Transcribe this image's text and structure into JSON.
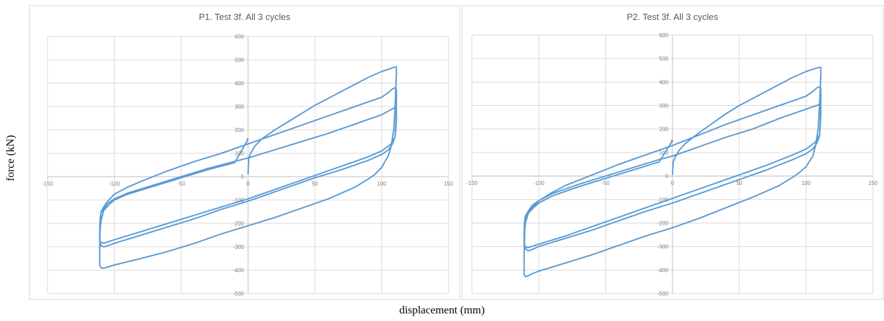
{
  "y_axis_label": "force (kN)",
  "x_axis_label": "displacement (mm)",
  "chart_data": [
    {
      "type": "line",
      "title": "P1. Test 3f. All 3 cycles",
      "xlim": [
        -150,
        150
      ],
      "ylim": [
        -500,
        600
      ],
      "x_ticks": [
        -150,
        -100,
        -50,
        0,
        50,
        100,
        150
      ],
      "y_ticks": [
        -500,
        -400,
        -300,
        -200,
        -100,
        0,
        100,
        200,
        300,
        400,
        500,
        600
      ],
      "grid": true,
      "color": "#5b9bd5",
      "series": [
        {
          "points": [
            [
              0,
              10
            ],
            [
              0.5,
              80
            ],
            [
              2,
              100
            ],
            [
              5,
              130
            ],
            [
              10,
              160
            ],
            [
              20,
              200
            ],
            [
              30,
              235
            ],
            [
              40,
              270
            ],
            [
              50,
              305
            ],
            [
              60,
              335
            ],
            [
              70,
              365
            ],
            [
              80,
              395
            ],
            [
              90,
              425
            ],
            [
              100,
              450
            ],
            [
              108,
              465
            ],
            [
              110,
              470
            ],
            [
              111,
              469
            ],
            [
              111,
              440
            ],
            [
              110.5,
              380
            ],
            [
              110,
              300
            ],
            [
              109,
              200
            ],
            [
              107,
              130
            ],
            [
              105,
              90
            ],
            [
              100,
              40
            ],
            [
              95,
              10
            ],
            [
              90,
              -10
            ],
            [
              80,
              -45
            ],
            [
              60,
              -95
            ],
            [
              40,
              -135
            ],
            [
              20,
              -175
            ],
            [
              0,
              -210
            ],
            [
              -20,
              -245
            ],
            [
              -40,
              -285
            ],
            [
              -60,
              -320
            ],
            [
              -80,
              -350
            ],
            [
              -100,
              -378
            ],
            [
              -106,
              -388
            ],
            [
              -108,
              -392
            ],
            [
              -110,
              -390
            ],
            [
              -111,
              -380
            ],
            [
              -111,
              -300
            ],
            [
              -110.5,
              -200
            ],
            [
              -110,
              -150
            ],
            [
              -108,
              -130
            ],
            [
              -105,
              -105
            ],
            [
              -100,
              -75
            ],
            [
              -90,
              -45
            ],
            [
              -80,
              -20
            ],
            [
              -60,
              25
            ],
            [
              -40,
              65
            ],
            [
              -20,
              100
            ],
            [
              0,
              140
            ],
            [
              20,
              180
            ],
            [
              40,
              220
            ],
            [
              60,
              260
            ],
            [
              80,
              300
            ],
            [
              100,
              340
            ],
            [
              105,
              360
            ],
            [
              108,
              375
            ],
            [
              110,
              380
            ],
            [
              111,
              375
            ],
            [
              111,
              300
            ],
            [
              110.5,
              220
            ],
            [
              110,
              170
            ],
            [
              108,
              140
            ],
            [
              105,
              115
            ],
            [
              100,
              95
            ],
            [
              90,
              70
            ],
            [
              70,
              30
            ],
            [
              50,
              -5
            ],
            [
              30,
              -45
            ],
            [
              10,
              -85
            ],
            [
              0,
              -105
            ],
            [
              -20,
              -140
            ],
            [
              -40,
              -180
            ],
            [
              -60,
              -215
            ],
            [
              -80,
              -250
            ],
            [
              -100,
              -285
            ],
            [
              -106,
              -298
            ],
            [
              -108,
              -300
            ],
            [
              -110,
              -295
            ],
            [
              -111,
              -270
            ],
            [
              -111,
              -220
            ],
            [
              -110.5,
              -170
            ],
            [
              -110,
              -155
            ],
            [
              -108,
              -140
            ],
            [
              -105,
              -115
            ],
            [
              -100,
              -95
            ],
            [
              -90,
              -70
            ],
            [
              -70,
              -35
            ],
            [
              -50,
              0
            ],
            [
              -30,
              35
            ],
            [
              -10,
              65
            ],
            [
              0,
              80
            ],
            [
              20,
              115
            ],
            [
              40,
              150
            ],
            [
              60,
              185
            ],
            [
              80,
              225
            ],
            [
              100,
              265
            ],
            [
              108,
              290
            ],
            [
              110,
              295
            ],
            [
              111,
              290
            ],
            [
              111,
              250
            ],
            [
              110.5,
              200
            ],
            [
              110,
              170
            ],
            [
              107,
              140
            ],
            [
              100,
              110
            ],
            [
              90,
              85
            ],
            [
              70,
              45
            ],
            [
              50,
              5
            ],
            [
              30,
              -35
            ],
            [
              10,
              -75
            ],
            [
              0,
              -95
            ],
            [
              -20,
              -130
            ],
            [
              -40,
              -165
            ],
            [
              -60,
              -200
            ],
            [
              -80,
              -235
            ],
            [
              -100,
              -270
            ],
            [
              -108,
              -285
            ],
            [
              -111,
              -278
            ],
            [
              -111,
              -240
            ],
            [
              -110,
              -190
            ],
            [
              -108,
              -145
            ],
            [
              -104,
              -120
            ],
            [
              -100,
              -100
            ],
            [
              -90,
              -75
            ],
            [
              -70,
              -40
            ],
            [
              -50,
              -5
            ],
            [
              -30,
              30
            ],
            [
              -10,
              60
            ],
            [
              0,
              160
            ],
            [
              -1,
              162
            ]
          ]
        }
      ]
    },
    {
      "type": "line",
      "title": "P2. Test 3f. All 3 cycles",
      "xlim": [
        -150,
        150
      ],
      "ylim": [
        -500,
        600
      ],
      "x_ticks": [
        -150,
        -100,
        -50,
        0,
        50,
        100,
        150
      ],
      "y_ticks": [
        -500,
        -400,
        -300,
        -200,
        -100,
        0,
        100,
        200,
        300,
        400,
        500,
        600
      ],
      "grid": true,
      "color": "#5b9bd5",
      "series": [
        {
          "points": [
            [
              0,
              5
            ],
            [
              0.5,
              60
            ],
            [
              2,
              80
            ],
            [
              5,
              110
            ],
            [
              10,
              140
            ],
            [
              20,
              185
            ],
            [
              30,
              225
            ],
            [
              40,
              265
            ],
            [
              50,
              300
            ],
            [
              60,
              330
            ],
            [
              70,
              360
            ],
            [
              80,
              390
            ],
            [
              90,
              420
            ],
            [
              100,
              445
            ],
            [
              108,
              460
            ],
            [
              110,
              463
            ],
            [
              111,
              462
            ],
            [
              111,
              430
            ],
            [
              110.5,
              370
            ],
            [
              110,
              300
            ],
            [
              109,
              200
            ],
            [
              107,
              130
            ],
            [
              105,
              85
            ],
            [
              100,
              40
            ],
            [
              95,
              15
            ],
            [
              90,
              -5
            ],
            [
              80,
              -40
            ],
            [
              60,
              -90
            ],
            [
              40,
              -135
            ],
            [
              20,
              -180
            ],
            [
              0,
              -220
            ],
            [
              -20,
              -255
            ],
            [
              -40,
              -295
            ],
            [
              -60,
              -335
            ],
            [
              -80,
              -370
            ],
            [
              -100,
              -405
            ],
            [
              -106,
              -418
            ],
            [
              -108,
              -425
            ],
            [
              -110,
              -428
            ],
            [
              -111,
              -420
            ],
            [
              -111,
              -330
            ],
            [
              -110.5,
              -230
            ],
            [
              -110,
              -175
            ],
            [
              -108,
              -160
            ],
            [
              -105,
              -135
            ],
            [
              -100,
              -105
            ],
            [
              -90,
              -70
            ],
            [
              -80,
              -40
            ],
            [
              -60,
              5
            ],
            [
              -40,
              50
            ],
            [
              -20,
              90
            ],
            [
              0,
              130
            ],
            [
              20,
              175
            ],
            [
              40,
              220
            ],
            [
              60,
              260
            ],
            [
              80,
              300
            ],
            [
              100,
              340
            ],
            [
              105,
              360
            ],
            [
              108,
              375
            ],
            [
              110,
              380
            ],
            [
              111,
              375
            ],
            [
              111,
              300
            ],
            [
              110.5,
              220
            ],
            [
              110,
              170
            ],
            [
              108,
              140
            ],
            [
              105,
              115
            ],
            [
              100,
              95
            ],
            [
              90,
              70
            ],
            [
              70,
              25
            ],
            [
              50,
              -15
            ],
            [
              30,
              -55
            ],
            [
              10,
              -95
            ],
            [
              0,
              -115
            ],
            [
              -20,
              -150
            ],
            [
              -40,
              -190
            ],
            [
              -60,
              -230
            ],
            [
              -80,
              -265
            ],
            [
              -100,
              -300
            ],
            [
              -106,
              -315
            ],
            [
              -108,
              -318
            ],
            [
              -110,
              -310
            ],
            [
              -111,
              -280
            ],
            [
              -111,
              -230
            ],
            [
              -110.5,
              -185
            ],
            [
              -110,
              -170
            ],
            [
              -108,
              -150
            ],
            [
              -105,
              -125
            ],
            [
              -100,
              -105
            ],
            [
              -90,
              -75
            ],
            [
              -70,
              -35
            ],
            [
              -50,
              0
            ],
            [
              -30,
              35
            ],
            [
              -10,
              70
            ],
            [
              0,
              85
            ],
            [
              20,
              125
            ],
            [
              40,
              165
            ],
            [
              60,
              200
            ],
            [
              80,
              245
            ],
            [
              100,
              285
            ],
            [
              108,
              300
            ],
            [
              110,
              305
            ],
            [
              111,
              300
            ],
            [
              111,
              260
            ],
            [
              110.5,
              210
            ],
            [
              110,
              175
            ],
            [
              107,
              145
            ],
            [
              100,
              115
            ],
            [
              90,
              90
            ],
            [
              70,
              45
            ],
            [
              50,
              5
            ],
            [
              30,
              -35
            ],
            [
              10,
              -75
            ],
            [
              0,
              -95
            ],
            [
              -20,
              -135
            ],
            [
              -40,
              -175
            ],
            [
              -60,
              -215
            ],
            [
              -80,
              -255
            ],
            [
              -100,
              -290
            ],
            [
              -108,
              -305
            ],
            [
              -111,
              -298
            ],
            [
              -111,
              -250
            ],
            [
              -110,
              -200
            ],
            [
              -108,
              -160
            ],
            [
              -104,
              -135
            ],
            [
              -100,
              -115
            ],
            [
              -90,
              -85
            ],
            [
              -70,
              -45
            ],
            [
              -50,
              -10
            ],
            [
              -30,
              25
            ],
            [
              -10,
              60
            ],
            [
              0,
              150
            ],
            [
              -1,
              152
            ]
          ]
        }
      ]
    }
  ]
}
